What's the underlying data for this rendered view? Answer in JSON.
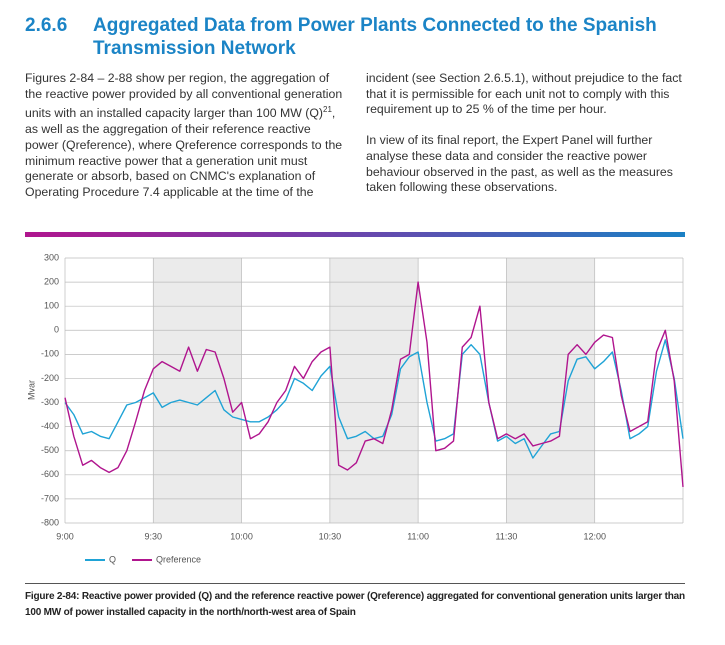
{
  "section": {
    "number": "2.6.6",
    "title": "Aggregated Data from Power Plants Connected to the Spanish Transmission Network"
  },
  "body": {
    "paragraph_1": {
      "text_before": "Figures 2-84 – 2-88 show per region, the aggregation of the reactive power provided by all conventional generation units with an installed capacity larger than 100 MW (Q)",
      "footnote_ref": "21",
      "text_after": ", as well as the aggregation of their reference reactive power (Qreference), where Qreference corresponds to the minimum reactive power that a generation unit must generate or absorb, based on CNMC's explanation of Operating Procedure 7.4 applicable at the time of the incident (see Section 2.6.5.1), without prejudice to the fact that it is permissible for each unit not to comply with this requirement up to 25 % of the time per hour."
    },
    "paragraph_2": "In view of its final report, the Expert Panel will further analyse these data and consider the reactive power behaviour observed in the past, as well as the measures taken following these observations."
  },
  "chart_data": {
    "type": "line",
    "y_label": "Mvar",
    "x": [
      0,
      3,
      6,
      9,
      12,
      15,
      18,
      21,
      24,
      27,
      30,
      33,
      36,
      39,
      42,
      45,
      48,
      51,
      54,
      57,
      60,
      63,
      66,
      69,
      72,
      75,
      78,
      81,
      84,
      87,
      90,
      93,
      96,
      99,
      102,
      105,
      108,
      111,
      114,
      117,
      120,
      123,
      126,
      129,
      132,
      135,
      138,
      141,
      144,
      147,
      150,
      153,
      156,
      159,
      162,
      165,
      168,
      171,
      174,
      177,
      180,
      183,
      186,
      189,
      192,
      195,
      198,
      201,
      204,
      207,
      210
    ],
    "series": [
      {
        "name": "Q",
        "color": "#1fa3d6",
        "values": [
          -300,
          -350,
          -430,
          -420,
          -440,
          -450,
          -380,
          -310,
          -300,
          -280,
          -260,
          -320,
          -300,
          -290,
          -300,
          -310,
          -280,
          -250,
          -330,
          -360,
          -370,
          -380,
          -380,
          -360,
          -330,
          -290,
          -200,
          -220,
          -250,
          -190,
          -150,
          -360,
          -450,
          -440,
          -420,
          -450,
          -440,
          -350,
          -160,
          -110,
          -90,
          -300,
          -460,
          -450,
          -430,
          -100,
          -60,
          -100,
          -300,
          -460,
          -440,
          -470,
          -450,
          -530,
          -480,
          -430,
          -420,
          -210,
          -120,
          -110,
          -160,
          -130,
          -90,
          -250,
          -450,
          -430,
          -400,
          -170,
          -40,
          -200,
          -450
        ]
      },
      {
        "name": "Qreference",
        "color": "#b0158e",
        "values": [
          -280,
          -440,
          -560,
          -540,
          -570,
          -590,
          -570,
          -500,
          -380,
          -250,
          -160,
          -130,
          -150,
          -170,
          -70,
          -170,
          -80,
          -90,
          -200,
          -340,
          -300,
          -450,
          -430,
          -380,
          -300,
          -250,
          -150,
          -200,
          -130,
          -90,
          -70,
          -560,
          -580,
          -550,
          -460,
          -450,
          -470,
          -330,
          -120,
          -100,
          200,
          -50,
          -500,
          -490,
          -460,
          -70,
          -30,
          100,
          -300,
          -450,
          -430,
          -450,
          -430,
          -480,
          -470,
          -460,
          -440,
          -100,
          -60,
          -100,
          -50,
          -20,
          -30,
          -270,
          -420,
          -400,
          -380,
          -90,
          0,
          -210,
          -650
        ]
      }
    ],
    "xlim": [
      0,
      210
    ],
    "xticks": [
      {
        "value": 0,
        "label": "9:00"
      },
      {
        "value": 30,
        "label": "9:30"
      },
      {
        "value": 60,
        "label": "10:00"
      },
      {
        "value": 90,
        "label": "10:30"
      },
      {
        "value": 120,
        "label": "11:00"
      },
      {
        "value": 150,
        "label": "11:30"
      },
      {
        "value": 180,
        "label": "12:00"
      }
    ],
    "ylim": [
      -800,
      300
    ],
    "yticks": [
      300,
      200,
      100,
      0,
      -100,
      -200,
      -300,
      -400,
      -500,
      -600,
      -700,
      -800
    ],
    "grid": true
  },
  "caption": "Figure 2-84: Reactive power provided (Q) and the reference reactive power (Qreference) aggregated for conventional generation units larger than 100 MW of power installed capacity in the north/north-west area of Spain"
}
